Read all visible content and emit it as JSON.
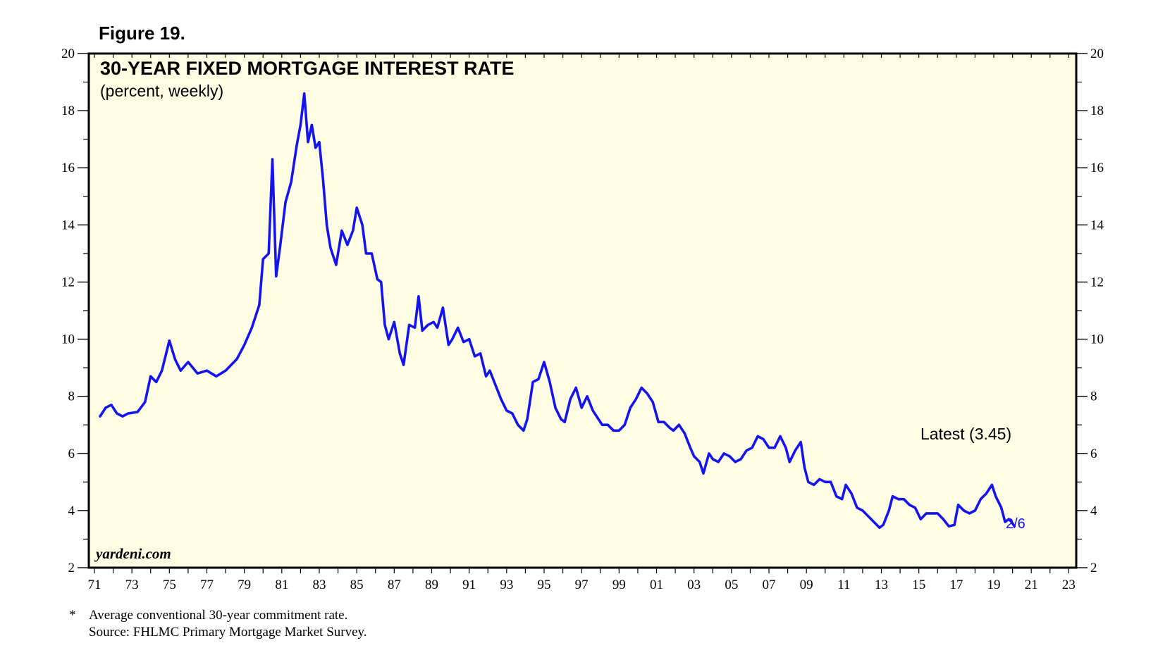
{
  "figure_label": "Figure 19.",
  "brand": "yardeni.com",
  "footnote": {
    "marker": "*",
    "line1": "Average conventional 30-year commitment rate.",
    "line2": "Source: FHLMC Primary Mortgage Market Survey."
  },
  "colors": {
    "background": "#fefce3",
    "line": "#1414f0",
    "frame": "#000000",
    "date_label": "#1414f0"
  },
  "chart_data": {
    "type": "line",
    "title": "30-YEAR FIXED MORTGAGE INTEREST RATE",
    "subtitle": "(percent, weekly)",
    "xlabel": "",
    "ylabel": "",
    "xlim": [
      1970.7,
      2023.4
    ],
    "ylim": [
      2,
      20
    ],
    "y_ticks": [
      2,
      4,
      6,
      8,
      10,
      12,
      14,
      16,
      18,
      20
    ],
    "y_tick_labels": [
      "2",
      "4",
      "6",
      "8",
      "10",
      "12",
      "14",
      "16",
      "18",
      "20"
    ],
    "x_ticks": [
      1971,
      1973,
      1975,
      1977,
      1979,
      1981,
      1983,
      1985,
      1987,
      1989,
      1991,
      1993,
      1995,
      1997,
      1999,
      2001,
      2003,
      2005,
      2007,
      2009,
      2011,
      2013,
      2015,
      2017,
      2019,
      2021,
      2023
    ],
    "x_tick_labels": [
      "71",
      "73",
      "75",
      "77",
      "79",
      "81",
      "83",
      "85",
      "87",
      "89",
      "91",
      "93",
      "95",
      "97",
      "99",
      "01",
      "03",
      "05",
      "07",
      "09",
      "11",
      "13",
      "15",
      "17",
      "19",
      "21",
      "23"
    ],
    "grid": false,
    "y_axis_both_sides": true,
    "annotation": "Latest (3.45)",
    "latest_date_label": "2/6",
    "series": [
      {
        "values": [
          [
            1971.3,
            7.3
          ],
          [
            1971.6,
            7.6
          ],
          [
            1971.9,
            7.7
          ],
          [
            1972.2,
            7.4
          ],
          [
            1972.5,
            7.3
          ],
          [
            1972.8,
            7.4
          ],
          [
            1973.3,
            7.45
          ],
          [
            1973.7,
            7.8
          ],
          [
            1974.0,
            8.7
          ],
          [
            1974.3,
            8.5
          ],
          [
            1974.6,
            8.9
          ],
          [
            1975.0,
            9.95
          ],
          [
            1975.3,
            9.3
          ],
          [
            1975.6,
            8.9
          ],
          [
            1976.0,
            9.2
          ],
          [
            1976.5,
            8.8
          ],
          [
            1977.0,
            8.9
          ],
          [
            1977.5,
            8.7
          ],
          [
            1978.0,
            8.9
          ],
          [
            1978.6,
            9.3
          ],
          [
            1979.0,
            9.8
          ],
          [
            1979.4,
            10.4
          ],
          [
            1979.8,
            11.2
          ],
          [
            1980.0,
            12.8
          ],
          [
            1980.3,
            13.0
          ],
          [
            1980.5,
            16.3
          ],
          [
            1980.7,
            12.2
          ],
          [
            1980.9,
            13.2
          ],
          [
            1981.2,
            14.8
          ],
          [
            1981.5,
            15.5
          ],
          [
            1981.8,
            16.8
          ],
          [
            1982.0,
            17.5
          ],
          [
            1982.2,
            18.6
          ],
          [
            1982.4,
            16.9
          ],
          [
            1982.6,
            17.5
          ],
          [
            1982.8,
            16.7
          ],
          [
            1983.0,
            16.9
          ],
          [
            1983.2,
            15.6
          ],
          [
            1983.4,
            14.0
          ],
          [
            1983.6,
            13.2
          ],
          [
            1983.9,
            12.6
          ],
          [
            1984.2,
            13.8
          ],
          [
            1984.5,
            13.3
          ],
          [
            1984.8,
            13.8
          ],
          [
            1985.0,
            14.6
          ],
          [
            1985.3,
            14.0
          ],
          [
            1985.5,
            13.0
          ],
          [
            1985.8,
            13.0
          ],
          [
            1986.1,
            12.1
          ],
          [
            1986.3,
            12.0
          ],
          [
            1986.5,
            10.5
          ],
          [
            1986.7,
            10.0
          ],
          [
            1987.0,
            10.6
          ],
          [
            1987.3,
            9.5
          ],
          [
            1987.5,
            9.1
          ],
          [
            1987.8,
            10.5
          ],
          [
            1988.1,
            10.4
          ],
          [
            1988.3,
            11.5
          ],
          [
            1988.5,
            10.3
          ],
          [
            1988.8,
            10.5
          ],
          [
            1989.1,
            10.6
          ],
          [
            1989.3,
            10.4
          ],
          [
            1989.6,
            11.1
          ],
          [
            1989.9,
            9.8
          ],
          [
            1990.1,
            10.0
          ],
          [
            1990.4,
            10.4
          ],
          [
            1990.7,
            9.9
          ],
          [
            1991.0,
            10.0
          ],
          [
            1991.3,
            9.4
          ],
          [
            1991.6,
            9.5
          ],
          [
            1991.9,
            8.7
          ],
          [
            1992.1,
            8.9
          ],
          [
            1992.4,
            8.4
          ],
          [
            1992.7,
            7.9
          ],
          [
            1993.0,
            7.5
          ],
          [
            1993.3,
            7.4
          ],
          [
            1993.6,
            7.0
          ],
          [
            1993.9,
            6.8
          ],
          [
            1994.1,
            7.2
          ],
          [
            1994.4,
            8.5
          ],
          [
            1994.7,
            8.6
          ],
          [
            1995.0,
            9.2
          ],
          [
            1995.3,
            8.5
          ],
          [
            1995.6,
            7.6
          ],
          [
            1995.9,
            7.2
          ],
          [
            1996.1,
            7.1
          ],
          [
            1996.4,
            7.9
          ],
          [
            1996.7,
            8.3
          ],
          [
            1997.0,
            7.6
          ],
          [
            1997.3,
            8.0
          ],
          [
            1997.6,
            7.5
          ],
          [
            1997.9,
            7.2
          ],
          [
            1998.1,
            7.0
          ],
          [
            1998.4,
            7.0
          ],
          [
            1998.7,
            6.8
          ],
          [
            1999.0,
            6.8
          ],
          [
            1999.3,
            7.0
          ],
          [
            1999.6,
            7.6
          ],
          [
            1999.9,
            7.9
          ],
          [
            2000.2,
            8.3
          ],
          [
            2000.5,
            8.1
          ],
          [
            2000.8,
            7.8
          ],
          [
            2001.1,
            7.1
          ],
          [
            2001.4,
            7.1
          ],
          [
            2001.7,
            6.9
          ],
          [
            2001.9,
            6.8
          ],
          [
            2002.2,
            7.0
          ],
          [
            2002.5,
            6.7
          ],
          [
            2002.8,
            6.2
          ],
          [
            2003.0,
            5.9
          ],
          [
            2003.3,
            5.7
          ],
          [
            2003.5,
            5.3
          ],
          [
            2003.8,
            6.0
          ],
          [
            2004.0,
            5.8
          ],
          [
            2004.3,
            5.7
          ],
          [
            2004.6,
            6.0
          ],
          [
            2004.9,
            5.9
          ],
          [
            2005.2,
            5.7
          ],
          [
            2005.5,
            5.8
          ],
          [
            2005.8,
            6.1
          ],
          [
            2006.1,
            6.2
          ],
          [
            2006.4,
            6.6
          ],
          [
            2006.7,
            6.5
          ],
          [
            2007.0,
            6.2
          ],
          [
            2007.3,
            6.2
          ],
          [
            2007.6,
            6.6
          ],
          [
            2007.9,
            6.2
          ],
          [
            2008.1,
            5.7
          ],
          [
            2008.4,
            6.1
          ],
          [
            2008.7,
            6.4
          ],
          [
            2008.9,
            5.5
          ],
          [
            2009.1,
            5.0
          ],
          [
            2009.4,
            4.9
          ],
          [
            2009.7,
            5.1
          ],
          [
            2010.0,
            5.0
          ],
          [
            2010.3,
            5.0
          ],
          [
            2010.6,
            4.5
          ],
          [
            2010.9,
            4.4
          ],
          [
            2011.1,
            4.9
          ],
          [
            2011.4,
            4.6
          ],
          [
            2011.7,
            4.1
          ],
          [
            2012.0,
            4.0
          ],
          [
            2012.3,
            3.8
          ],
          [
            2012.6,
            3.6
          ],
          [
            2012.9,
            3.4
          ],
          [
            2013.1,
            3.5
          ],
          [
            2013.4,
            4.0
          ],
          [
            2013.6,
            4.5
          ],
          [
            2013.9,
            4.4
          ],
          [
            2014.2,
            4.4
          ],
          [
            2014.5,
            4.2
          ],
          [
            2014.8,
            4.1
          ],
          [
            2015.1,
            3.7
          ],
          [
            2015.4,
            3.9
          ],
          [
            2015.7,
            3.9
          ],
          [
            2016.0,
            3.9
          ],
          [
            2016.3,
            3.7
          ],
          [
            2016.6,
            3.45
          ],
          [
            2016.9,
            3.5
          ],
          [
            2017.1,
            4.2
          ],
          [
            2017.4,
            4.0
          ],
          [
            2017.7,
            3.9
          ],
          [
            2018.0,
            4.0
          ],
          [
            2018.3,
            4.4
          ],
          [
            2018.6,
            4.6
          ],
          [
            2018.9,
            4.9
          ],
          [
            2019.1,
            4.5
          ],
          [
            2019.4,
            4.1
          ],
          [
            2019.6,
            3.6
          ],
          [
            2019.8,
            3.7
          ],
          [
            2019.95,
            3.6
          ],
          [
            2020.1,
            3.45
          ]
        ]
      }
    ]
  }
}
